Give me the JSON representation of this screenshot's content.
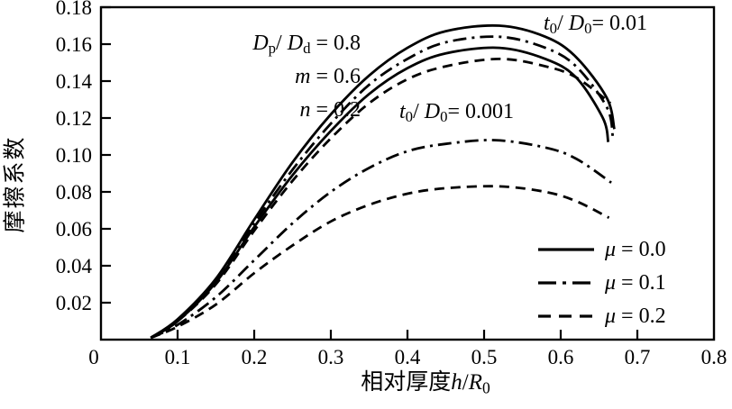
{
  "figure": {
    "background": "#ffffff",
    "ink": "#000000"
  },
  "rich": {
    "params": [
      [
        {
          "t": "D",
          "s": "i"
        },
        {
          "t": "p",
          "s": "sub"
        },
        {
          "t": "/ ",
          "s": "n"
        },
        {
          "t": "D",
          "s": "i"
        },
        {
          "t": "d",
          "s": "sub"
        },
        {
          "t": " = 0.8",
          "s": "n"
        }
      ],
      [
        {
          "t": "m",
          "s": "i"
        },
        {
          "t": " = 0.6",
          "s": "n"
        }
      ],
      [
        {
          "t": "n",
          "s": "i"
        },
        {
          "t": " = 0.2",
          "s": "n"
        }
      ]
    ],
    "group01": [
      {
        "t": "t",
        "s": "i"
      },
      {
        "t": "0",
        "s": "sub"
      },
      {
        "t": "/ ",
        "s": "n"
      },
      {
        "t": "D",
        "s": "i"
      },
      {
        "t": "0",
        "s": "sub"
      },
      {
        "t": "= 0.01",
        "s": "n"
      }
    ],
    "group001": [
      {
        "t": "t",
        "s": "i"
      },
      {
        "t": "0",
        "s": "sub"
      },
      {
        "t": "/ ",
        "s": "n"
      },
      {
        "t": "D",
        "s": "i"
      },
      {
        "t": "0",
        "s": "sub"
      },
      {
        "t": "= 0.001",
        "s": "n"
      }
    ],
    "xlabel": [
      {
        "t": "相对厚度",
        "s": "n"
      },
      {
        "t": "h",
        "s": "i"
      },
      {
        "t": "/",
        "s": "n"
      },
      {
        "t": "R",
        "s": "i"
      },
      {
        "t": "0",
        "s": "sub"
      }
    ],
    "legend": [
      [
        {
          "t": "μ",
          "s": "i"
        },
        {
          "t": " = 0.0",
          "s": "n"
        }
      ],
      [
        {
          "t": "μ",
          "s": "i"
        },
        {
          "t": " = 0.1",
          "s": "n"
        }
      ],
      [
        {
          "t": "μ",
          "s": "i"
        },
        {
          "t": " = 0.2",
          "s": "n"
        }
      ]
    ]
  },
  "chart_data": {
    "type": "line",
    "title": "",
    "xlabel": "相对厚度 h/R0",
    "ylabel": "摩擦系数",
    "xlim": [
      0,
      0.8
    ],
    "ylim": [
      0,
      0.18
    ],
    "grid": false,
    "legend_position": "inside lower right",
    "legend_entries": [
      "μ = 0.0 (solid)",
      "μ = 0.1 (dash-dot)",
      "μ = 0.2 (dashed)"
    ],
    "annotations": [
      "Dp/Dd = 0.8",
      "m = 0.6",
      "n = 0.2",
      "t0/D0 = 0.01",
      "t0/D0 = 0.001"
    ],
    "xticks_marked": [
      0.1,
      0.2,
      0.3,
      0.4,
      0.5,
      0.6,
      0.7
    ],
    "xtick_labels": [
      {
        "v": 0,
        "t": "0"
      },
      {
        "v": 0.1,
        "t": "0.1"
      },
      {
        "v": 0.2,
        "t": "0.2"
      },
      {
        "v": 0.3,
        "t": "0.3"
      },
      {
        "v": 0.4,
        "t": "0.4"
      },
      {
        "v": 0.5,
        "t": "0.5"
      },
      {
        "v": 0.6,
        "t": "0.6"
      },
      {
        "v": 0.7,
        "t": "0.7"
      },
      {
        "v": 0.8,
        "t": "0.8"
      }
    ],
    "yticks_marked": [
      0.02,
      0.04,
      0.06,
      0.08,
      0.1,
      0.12,
      0.14,
      0.16,
      0.18
    ],
    "ytick_labels": [
      {
        "v": 0.02,
        "t": "0.02"
      },
      {
        "v": 0.04,
        "t": "0.04"
      },
      {
        "v": 0.06,
        "t": "0.06"
      },
      {
        "v": 0.08,
        "t": "0.08"
      },
      {
        "v": 0.1,
        "t": "0.10"
      },
      {
        "v": 0.12,
        "t": "0.12"
      },
      {
        "v": 0.14,
        "t": "0.14"
      },
      {
        "v": 0.16,
        "t": "0.16"
      },
      {
        "v": 0.18,
        "t": "0.18"
      }
    ],
    "series": [
      {
        "name": "t0/D0=0.01, mu=0.0",
        "group": "t0/D0=0.01",
        "mu": 0.0,
        "style": "solid",
        "points": [
          [
            0.065,
            0.001
          ],
          [
            0.1,
            0.011
          ],
          [
            0.15,
            0.033
          ],
          [
            0.2,
            0.065
          ],
          [
            0.25,
            0.096
          ],
          [
            0.3,
            0.122
          ],
          [
            0.35,
            0.143
          ],
          [
            0.4,
            0.158
          ],
          [
            0.45,
            0.167
          ],
          [
            0.52,
            0.17
          ],
          [
            0.58,
            0.164
          ],
          [
            0.62,
            0.153
          ],
          [
            0.66,
            0.131
          ],
          [
            0.67,
            0.114
          ]
        ]
      },
      {
        "name": "t0/D0=0.01, mu=0.1",
        "group": "t0/D0=0.01",
        "mu": 0.1,
        "style": "dashdot",
        "points": [
          [
            0.065,
            0.001
          ],
          [
            0.1,
            0.01
          ],
          [
            0.15,
            0.032
          ],
          [
            0.2,
            0.063
          ],
          [
            0.25,
            0.092
          ],
          [
            0.3,
            0.117
          ],
          [
            0.35,
            0.138
          ],
          [
            0.4,
            0.152
          ],
          [
            0.45,
            0.161
          ],
          [
            0.52,
            0.164
          ],
          [
            0.58,
            0.158
          ],
          [
            0.62,
            0.148
          ],
          [
            0.66,
            0.126
          ],
          [
            0.668,
            0.11
          ]
        ]
      },
      {
        "name": "t0/D0=0.001, mu=0.0",
        "group": "t0/D0=0.001",
        "mu": 0.0,
        "style": "solid",
        "points": [
          [
            0.065,
            0.001
          ],
          [
            0.1,
            0.01
          ],
          [
            0.15,
            0.031
          ],
          [
            0.2,
            0.061
          ],
          [
            0.25,
            0.089
          ],
          [
            0.3,
            0.113
          ],
          [
            0.35,
            0.133
          ],
          [
            0.4,
            0.147
          ],
          [
            0.45,
            0.155
          ],
          [
            0.52,
            0.158
          ],
          [
            0.58,
            0.152
          ],
          [
            0.62,
            0.142
          ],
          [
            0.655,
            0.12
          ],
          [
            0.662,
            0.107
          ]
        ]
      },
      {
        "name": "t0/D0=0.01, mu=0.2",
        "group": "t0/D0=0.01",
        "mu": 0.2,
        "style": "dashed",
        "points": [
          [
            0.065,
            0.001
          ],
          [
            0.1,
            0.01
          ],
          [
            0.15,
            0.03
          ],
          [
            0.2,
            0.059
          ],
          [
            0.25,
            0.086
          ],
          [
            0.3,
            0.109
          ],
          [
            0.35,
            0.128
          ],
          [
            0.4,
            0.141
          ],
          [
            0.45,
            0.148
          ],
          [
            0.52,
            0.152
          ],
          [
            0.58,
            0.148
          ],
          [
            0.62,
            0.142
          ],
          [
            0.665,
            0.128
          ]
        ]
      },
      {
        "name": "t0/D0=0.001, mu=0.1",
        "group": "t0/D0=0.001",
        "mu": 0.1,
        "style": "dashdot",
        "points": [
          [
            0.065,
            0.001
          ],
          [
            0.1,
            0.008
          ],
          [
            0.15,
            0.023
          ],
          [
            0.2,
            0.043
          ],
          [
            0.25,
            0.063
          ],
          [
            0.3,
            0.08
          ],
          [
            0.35,
            0.093
          ],
          [
            0.4,
            0.102
          ],
          [
            0.45,
            0.106
          ],
          [
            0.515,
            0.108
          ],
          [
            0.58,
            0.104
          ],
          [
            0.62,
            0.098
          ],
          [
            0.666,
            0.085
          ]
        ]
      },
      {
        "name": "t0/D0=0.001, mu=0.2",
        "group": "t0/D0=0.001",
        "mu": 0.2,
        "style": "dashed",
        "points": [
          [
            0.065,
            0.001
          ],
          [
            0.1,
            0.007
          ],
          [
            0.15,
            0.019
          ],
          [
            0.2,
            0.036
          ],
          [
            0.25,
            0.051
          ],
          [
            0.3,
            0.064
          ],
          [
            0.35,
            0.073
          ],
          [
            0.4,
            0.079
          ],
          [
            0.45,
            0.082
          ],
          [
            0.52,
            0.083
          ],
          [
            0.58,
            0.08
          ],
          [
            0.62,
            0.075
          ],
          [
            0.663,
            0.066
          ]
        ]
      }
    ]
  }
}
